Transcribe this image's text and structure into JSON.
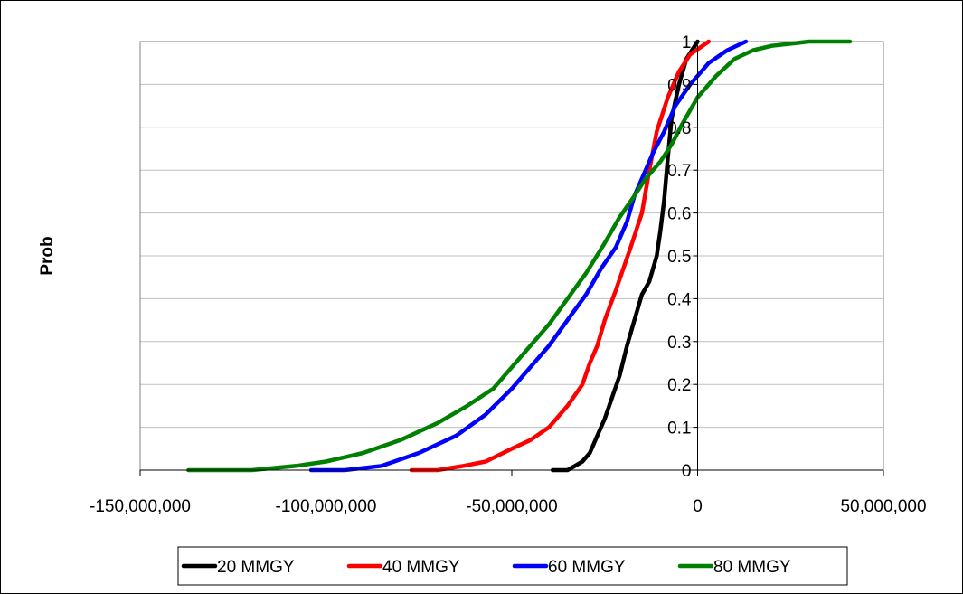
{
  "chart_data": {
    "type": "line",
    "title": "",
    "xlabel": "",
    "ylabel": "Prob",
    "xlim": [
      -150000000,
      50000000
    ],
    "ylim": [
      0,
      1
    ],
    "x_ticks": [
      -150000000,
      -100000000,
      -50000000,
      0,
      50000000
    ],
    "x_tick_labels": [
      "-150,000,000",
      "-100,000,000",
      "-50,000,000",
      "0",
      "50,000,000"
    ],
    "y_ticks": [
      0,
      0.1,
      0.2,
      0.3,
      0.4,
      0.5,
      0.6,
      0.7,
      0.8,
      0.9,
      1
    ],
    "y_tick_labels": [
      "0",
      "0.1",
      "0.2",
      "0.3",
      "0.4",
      "0.5",
      "0.6",
      "0.7",
      "0.8",
      "0.9",
      "1"
    ],
    "grid": true,
    "legend_position": "bottom",
    "series": [
      {
        "name": "20 MMGY",
        "color": "#000000",
        "x": [
          -39000000,
          -35000000,
          -33000000,
          -31000000,
          -29000000,
          -27000000,
          -25000000,
          -23000000,
          -21000000,
          -19000000,
          -17000000,
          -15000000,
          -13000000,
          -11000000,
          -10000000,
          -9000000,
          -8000000,
          -7000000,
          -5000000,
          -3000000,
          0
        ],
        "y": [
          0,
          0,
          0.01,
          0.02,
          0.04,
          0.08,
          0.12,
          0.17,
          0.22,
          0.29,
          0.35,
          0.41,
          0.44,
          0.5,
          0.56,
          0.63,
          0.73,
          0.82,
          0.9,
          0.96,
          1
        ]
      },
      {
        "name": "40 MMGY",
        "color": "#ff0000",
        "x": [
          -77000000,
          -70000000,
          -63000000,
          -57000000,
          -50000000,
          -45000000,
          -40000000,
          -35000000,
          -31000000,
          -29000000,
          -27000000,
          -25000000,
          -22000000,
          -20000000,
          -18000000,
          -15000000,
          -13000000,
          -11000000,
          -8000000,
          -5000000,
          -2000000,
          3000000
        ],
        "y": [
          0,
          0,
          0.01,
          0.02,
          0.05,
          0.07,
          0.1,
          0.15,
          0.2,
          0.25,
          0.29,
          0.35,
          0.42,
          0.47,
          0.52,
          0.6,
          0.7,
          0.79,
          0.87,
          0.93,
          0.97,
          1
        ]
      },
      {
        "name": "60 MMGY",
        "color": "#0000ff",
        "x": [
          -104000000,
          -95000000,
          -85000000,
          -75000000,
          -65000000,
          -57000000,
          -50000000,
          -45000000,
          -40000000,
          -35000000,
          -30000000,
          -26000000,
          -22000000,
          -19000000,
          -17000000,
          -15000000,
          -12000000,
          -9000000,
          -6000000,
          -2000000,
          3000000,
          8000000,
          13000000
        ],
        "y": [
          0,
          0,
          0.01,
          0.04,
          0.08,
          0.13,
          0.19,
          0.24,
          0.29,
          0.35,
          0.41,
          0.47,
          0.52,
          0.58,
          0.64,
          0.68,
          0.74,
          0.79,
          0.85,
          0.9,
          0.95,
          0.98,
          1
        ]
      },
      {
        "name": "80 MMGY",
        "color": "#008000",
        "x": [
          -137000000,
          -120000000,
          -108000000,
          -100000000,
          -90000000,
          -80000000,
          -70000000,
          -62000000,
          -55000000,
          -50000000,
          -45000000,
          -40000000,
          -35000000,
          -30000000,
          -25000000,
          -21000000,
          -17000000,
          -14000000,
          -10000000,
          -7000000,
          -4000000,
          0,
          5000000,
          10000000,
          15000000,
          20000000,
          30000000,
          41000000
        ],
        "y": [
          0,
          0,
          0.01,
          0.02,
          0.04,
          0.07,
          0.11,
          0.15,
          0.19,
          0.24,
          0.29,
          0.34,
          0.4,
          0.46,
          0.53,
          0.59,
          0.64,
          0.68,
          0.72,
          0.76,
          0.81,
          0.87,
          0.92,
          0.96,
          0.98,
          0.99,
          1,
          1
        ]
      }
    ]
  }
}
